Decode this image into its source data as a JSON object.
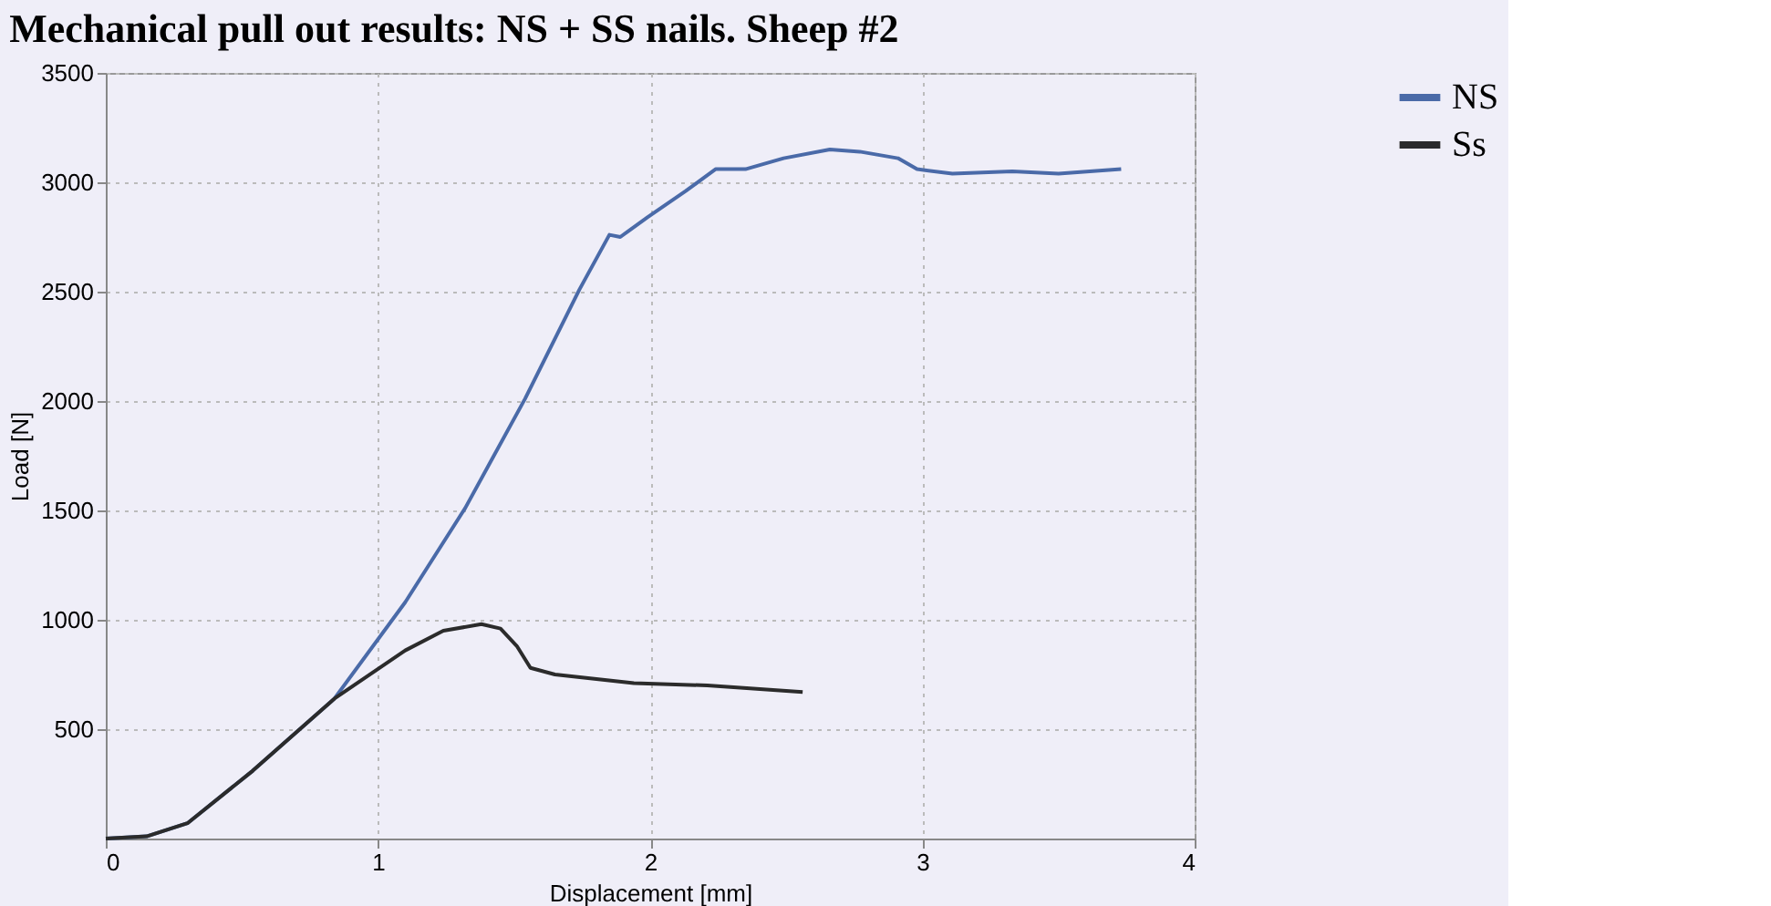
{
  "chart_data": {
    "type": "line",
    "title": "Mechanical pull out results: NS + SS nails. Sheep #2",
    "xlabel": "Displacement [mm]",
    "ylabel": "Load [N]",
    "xlim": [
      0,
      4
    ],
    "xticks": [
      0,
      1,
      2,
      3,
      4
    ],
    "ylim": [
      0,
      3500
    ],
    "yticks": [
      500,
      1000,
      1500,
      2000,
      2500,
      3000,
      3500
    ],
    "grid": true,
    "legend": "right",
    "line_style": "solid",
    "series": [
      {
        "name": "NS",
        "color": "#4a6aa8",
        "x": [
          0,
          0.15,
          0.3,
          0.54,
          0.84,
          1.1,
          1.32,
          1.54,
          1.74,
          1.85,
          1.89,
          1.99,
          2.13,
          2.24,
          2.35,
          2.49,
          2.66,
          2.77,
          2.91,
          2.98,
          3.11,
          3.33,
          3.5,
          3.73
        ],
        "values": [
          0,
          10,
          70,
          310,
          640,
          1080,
          1510,
          2010,
          2510,
          2760,
          2750,
          2840,
          2960,
          3060,
          3060,
          3110,
          3150,
          3140,
          3110,
          3060,
          3040,
          3050,
          3040,
          3060
        ]
      },
      {
        "name": "Ss",
        "color": "#2b2b2b",
        "x": [
          0,
          0.15,
          0.3,
          0.54,
          0.84,
          1.1,
          1.24,
          1.38,
          1.45,
          1.51,
          1.56,
          1.65,
          1.94,
          2.21,
          2.56
        ],
        "values": [
          0,
          10,
          70,
          310,
          640,
          860,
          950,
          980,
          960,
          880,
          780,
          750,
          710,
          700,
          670
        ]
      }
    ]
  }
}
